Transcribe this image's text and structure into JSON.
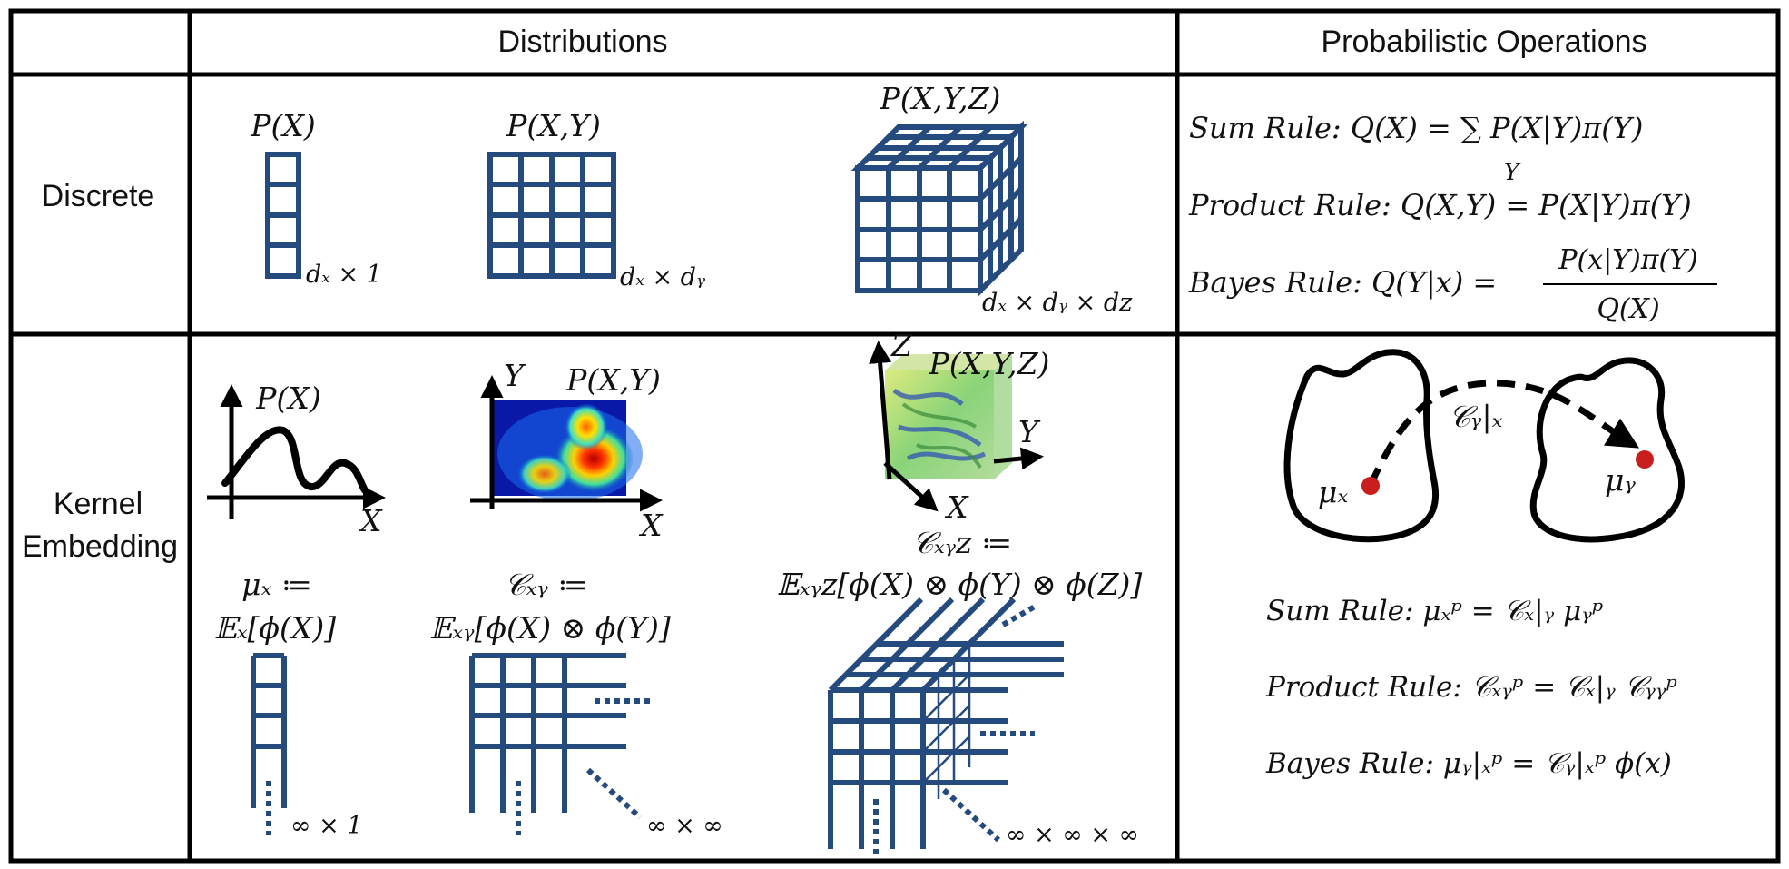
{
  "header": {
    "distributions": "Distributions",
    "operations": "Probabilistic Operations"
  },
  "rows": {
    "discrete": "Discrete",
    "kernel_line1": "Kernel",
    "kernel_line2": "Embedding"
  },
  "discrete": {
    "px": "P(X)",
    "px_dim": "dₓ × 1",
    "pxy": "P(X,Y)",
    "pxy_dim": "dₓ × dᵧ",
    "pxyz": "P(X,Y,Z)",
    "pxyz_dim": "dₓ × dᵧ × dᴢ"
  },
  "discrete_ops": {
    "sum": "Sum Rule: Q(X) = ∑ P(X|Y)π(Y)",
    "sum_sub": "Y",
    "product": "Product Rule: Q(X,Y) = P(X|Y)π(Y)",
    "bayes_prefix": "Bayes Rule: Q(Y|x) =",
    "bayes_num": "P(x|Y)π(Y)",
    "bayes_den": "Q(X)"
  },
  "kernel": {
    "px": "P(X)",
    "px_axis": "X",
    "pxy": "P(X,Y)",
    "pxy_axis_x": "X",
    "pxy_axis_y": "Y",
    "pxyz": "P(X,Y,Z)",
    "pxyz_axis_x": "X",
    "pxyz_axis_y": "Y",
    "pxyz_axis_z": "Z",
    "mu_def1": "μₓ ≔",
    "mu_def2": "𝔼ₓ[ϕ(X)]",
    "cxy_def1": "𝒞ₓᵧ ≔",
    "cxy_def2": "𝔼ₓᵧ[ϕ(X) ⊗ ϕ(Y)]",
    "cxyz_def1": "𝒞ₓᵧᴢ ≔",
    "cxyz_def2": "𝔼ₓᵧᴢ[ϕ(X) ⊗ ϕ(Y) ⊗ ϕ(Z)]",
    "dim1": "∞ × 1",
    "dim2": "∞ × ∞",
    "dim3": "∞ × ∞ × ∞"
  },
  "kernel_ops": {
    "mu_x": "μₓ",
    "mu_y": "μᵧ",
    "op_label": "𝒞ᵧ|ₓ",
    "sum": "Sum Rule:  μₓᵖ = 𝒞ₓ|ᵧ μᵧᵖ",
    "product": "Product Rule: 𝒞ₓᵧᵖ = 𝒞ₓ|ᵧ 𝒞ᵧᵧᵖ",
    "bayes": "Bayes Rule:  μᵧ|ₓᵖ = 𝒞ᵧ|ₓᵖ ϕ(x)"
  },
  "colors": {
    "grid": "#244a7e",
    "point": "#c81e1e"
  }
}
